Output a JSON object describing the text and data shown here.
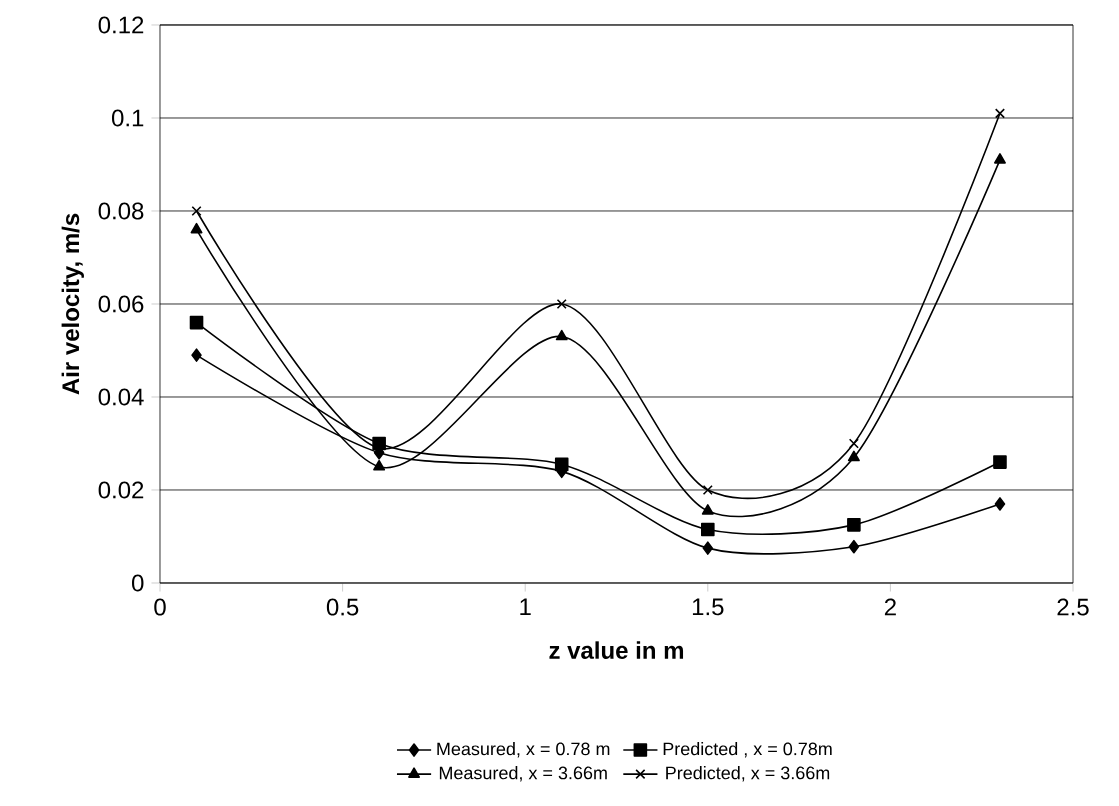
{
  "chart_data": {
    "type": "line",
    "xlabel": "z value in m",
    "ylabel": "Air velocity, m/s",
    "x": [
      0.1,
      0.6,
      1.1,
      1.5,
      1.9,
      2.3
    ],
    "series": [
      {
        "name": "Measured, x = 0.78 m",
        "color": "#000000",
        "marker": "diamond",
        "values": [
          0.049,
          0.028,
          0.024,
          0.0075,
          0.0078,
          0.017
        ]
      },
      {
        "name": "Predicted , x = 0.78m",
        "color": "#000000",
        "marker": "square",
        "values": [
          0.056,
          0.03,
          0.0255,
          0.0115,
          0.0125,
          0.026
        ]
      },
      {
        "name": "Measured, x = 3.66m",
        "color": "#000000",
        "marker": "triangle",
        "values": [
          0.076,
          0.025,
          0.053,
          0.0155,
          0.027,
          0.091
        ]
      },
      {
        "name": "Predicted, x = 3.66m",
        "color": "#000000",
        "marker": "cross",
        "values": [
          0.08,
          0.029,
          0.06,
          0.02,
          0.03,
          0.101
        ]
      }
    ],
    "xlim": [
      0,
      2.5
    ],
    "xticks": [
      0,
      0.5,
      1,
      1.5,
      2,
      2.5
    ],
    "ylim": [
      0,
      0.12
    ],
    "yticks": [
      0,
      0.02,
      0.04,
      0.06,
      0.08,
      0.1,
      0.12
    ],
    "grid": "y",
    "legend": "bottom",
    "line_style": "solid"
  }
}
